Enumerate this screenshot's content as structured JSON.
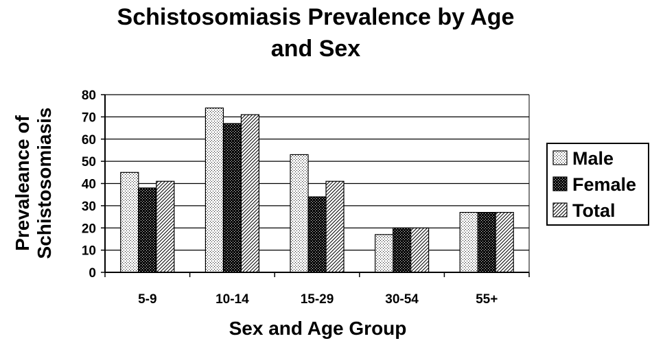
{
  "chart_data": {
    "type": "bar",
    "title": "Schistosomiasis Prevalence by Age and Sex",
    "xlabel": "Sex and Age Group",
    "ylabel": "Prevaleance of Schistosomiasis",
    "categories": [
      "5-9",
      "10-14",
      "15-29",
      "30-54",
      "55+"
    ],
    "series": [
      {
        "name": "Male",
        "values": [
          45,
          74,
          53,
          17,
          27
        ],
        "pattern": "dots",
        "color": "#ffffff"
      },
      {
        "name": "Female",
        "values": [
          38,
          67,
          34,
          20,
          27
        ],
        "pattern": "dark-dots",
        "color": "#000000"
      },
      {
        "name": "Total",
        "values": [
          41,
          71,
          41,
          20,
          27
        ],
        "pattern": "diagonal",
        "color": "#ffffff"
      }
    ],
    "ylim": [
      0,
      80
    ],
    "yticks": [
      0,
      10,
      20,
      30,
      40,
      50,
      60,
      70,
      80
    ],
    "grid": true,
    "legend_position": "right"
  }
}
